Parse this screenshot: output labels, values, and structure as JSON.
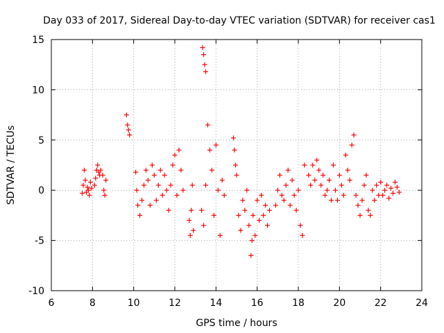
{
  "chart_data": {
    "type": "scatter",
    "title": "Day 033 of 2017, Sidereal Day-to-day VTEC variation (SDTVAR) for receiver cas1",
    "xlabel": "GPS time / hours",
    "ylabel": "SDTVAR / TECUs",
    "xlim": [
      6,
      24
    ],
    "ylim": [
      -10,
      15
    ],
    "x_ticks": [
      6,
      8,
      10,
      12,
      14,
      16,
      18,
      20,
      22,
      24
    ],
    "x_tick_labels": [
      "6",
      "8",
      "10",
      "12",
      "14",
      "16",
      "18",
      "20",
      "22",
      "24"
    ],
    "y_ticks": [
      -10,
      -5,
      0,
      5,
      10,
      15
    ],
    "y_tick_labels": [
      "-10",
      "-5",
      "0",
      "5",
      "10",
      "15"
    ],
    "grid": true,
    "marker": "+",
    "marker_color": "#ff0000",
    "series": [
      {
        "name": "cas1",
        "x": [
          7.5,
          7.55,
          7.6,
          7.65,
          7.7,
          7.75,
          7.8,
          7.85,
          7.9,
          7.95,
          8.1,
          8.15,
          8.2,
          8.25,
          8.3,
          8.35,
          8.4,
          8.5,
          8.55,
          8.6,
          8.65,
          9.65,
          9.7,
          9.75,
          9.8,
          10.1,
          10.15,
          10.2,
          10.3,
          10.4,
          10.5,
          10.6,
          10.7,
          10.8,
          10.9,
          11.0,
          11.1,
          11.2,
          11.3,
          11.4,
          11.5,
          11.6,
          11.7,
          11.8,
          11.9,
          12.0,
          12.1,
          12.2,
          12.3,
          12.4,
          12.7,
          12.75,
          12.8,
          12.85,
          12.9,
          13.35,
          13.4,
          13.45,
          13.5,
          13.3,
          13.4,
          13.5,
          13.6,
          13.7,
          13.8,
          13.9,
          14.0,
          14.1,
          14.2,
          14.3,
          14.4,
          14.85,
          14.9,
          14.95,
          15.0,
          15.1,
          15.2,
          15.3,
          15.4,
          15.5,
          15.6,
          15.7,
          15.75,
          15.8,
          15.9,
          16.0,
          16.1,
          16.2,
          16.3,
          16.4,
          16.5,
          16.6,
          16.9,
          17.0,
          17.1,
          17.2,
          17.3,
          17.4,
          17.5,
          17.6,
          17.7,
          17.8,
          17.9,
          18.0,
          18.1,
          18.2,
          18.3,
          18.5,
          18.6,
          18.7,
          18.8,
          18.9,
          19.0,
          19.1,
          19.2,
          19.3,
          19.4,
          19.5,
          19.6,
          19.7,
          19.8,
          19.9,
          20.0,
          20.1,
          20.2,
          20.3,
          20.4,
          20.5,
          20.6,
          20.7,
          20.8,
          20.9,
          21.0,
          21.1,
          21.2,
          21.3,
          21.4,
          21.5,
          21.6,
          21.7,
          21.8,
          21.9,
          22.0,
          22.1,
          22.2,
          22.3,
          22.4,
          22.5,
          22.6,
          22.7,
          22.8,
          22.9
        ],
        "y": [
          -0.3,
          0.5,
          2.0,
          1.0,
          -0.2,
          0.3,
          0.0,
          -0.5,
          0.8,
          0.2,
          0.5,
          1.2,
          2.0,
          2.5,
          1.8,
          1.5,
          2.0,
          1.5,
          0.0,
          -0.5,
          1.0,
          7.5,
          6.5,
          6.0,
          5.5,
          1.8,
          0.0,
          -1.5,
          -2.5,
          -1.0,
          0.5,
          2.0,
          1.0,
          -1.5,
          2.5,
          1.5,
          -1.0,
          0.5,
          2.0,
          -0.5,
          1.5,
          0.0,
          -2.0,
          0.5,
          2.5,
          3.5,
          -0.5,
          4.0,
          2.0,
          0.0,
          -3.0,
          -4.5,
          -2.0,
          0.5,
          -4.0,
          14.2,
          13.5,
          12.5,
          11.8,
          -2.0,
          -3.5,
          0.5,
          6.5,
          4.0,
          2.0,
          -2.5,
          4.5,
          0.0,
          -4.5,
          1.0,
          -0.5,
          5.2,
          4.0,
          2.5,
          1.5,
          -2.5,
          -4.0,
          -1.0,
          -2.0,
          0.0,
          -3.5,
          -6.5,
          -5.0,
          -2.5,
          -4.5,
          -1.0,
          -3.0,
          -0.5,
          -2.5,
          -1.5,
          -3.5,
          -2.0,
          -1.5,
          0.0,
          1.5,
          -0.5,
          -1.0,
          0.5,
          2.0,
          -1.5,
          1.0,
          -0.5,
          -2.0,
          0.0,
          -3.5,
          -4.5,
          2.5,
          1.5,
          0.5,
          2.5,
          1.0,
          3.0,
          2.0,
          0.5,
          1.5,
          -0.5,
          0.0,
          1.0,
          -1.0,
          2.5,
          0.0,
          -1.0,
          1.5,
          0.5,
          -0.5,
          3.5,
          2.0,
          1.0,
          4.5,
          5.5,
          -0.5,
          -1.5,
          -2.5,
          -1.0,
          0.5,
          1.5,
          -2.0,
          -2.5,
          0.0,
          -1.0,
          0.5,
          -0.5,
          0.8,
          -0.5,
          0.0,
          0.5,
          -0.8,
          0.2,
          -0.3,
          0.8,
          0.3,
          -0.2
        ]
      }
    ]
  }
}
